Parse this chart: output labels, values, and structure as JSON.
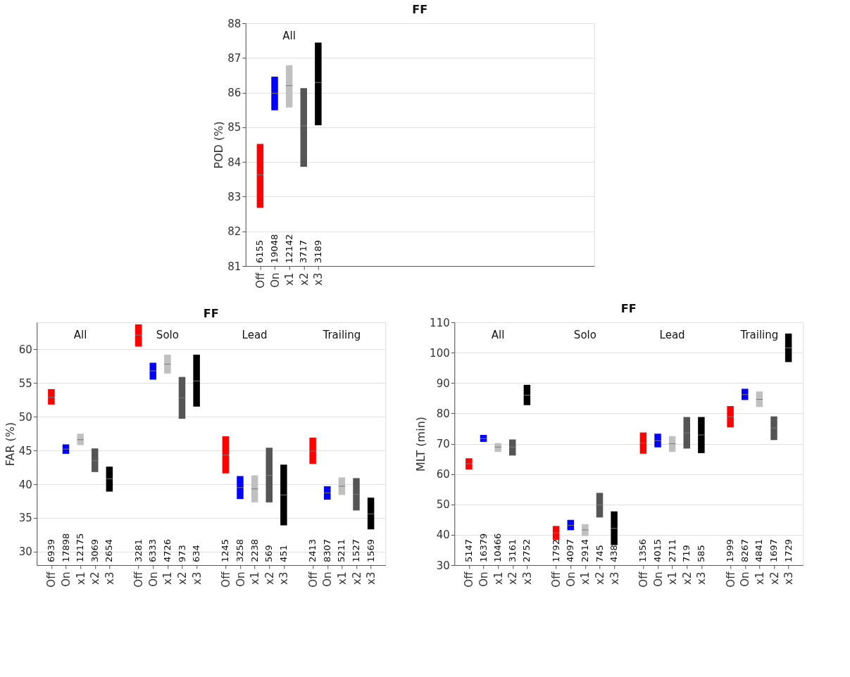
{
  "chart_data": [
    {
      "type": "box",
      "title": "FF",
      "ylabel": "POD (%)",
      "ylim": [
        81,
        88
      ],
      "yticks": [
        81,
        82,
        83,
        84,
        85,
        86,
        87,
        88
      ],
      "grid": "y",
      "categories": [
        "Off",
        "On",
        "x1",
        "x2",
        "x3",
        null,
        null,
        null,
        null,
        null,
        null,
        null,
        null,
        null,
        null,
        null,
        null,
        null,
        null,
        null,
        null,
        null,
        null
      ],
      "annotations": [
        "All",
        "6155",
        "19048",
        "12142",
        "3717",
        "3189"
      ],
      "series": [
        {
          "colors": [
            "#ff0000",
            "#0000ff",
            "#c0c0c0",
            "#555555",
            "#000000",
            null,
            null,
            null,
            null,
            null,
            null,
            null,
            null,
            null,
            null,
            null,
            null,
            null,
            null,
            null,
            null,
            null,
            null
          ],
          "boxes": [
            {
              "low": 82.68,
              "q1": 82.68,
              "median": 83.63,
              "q3": 84.52,
              "high": 84.52
            },
            {
              "low": 85.49,
              "q1": 85.49,
              "median": 85.98,
              "q3": 86.46,
              "high": 86.46
            },
            {
              "low": 85.57,
              "q1": 85.57,
              "median": 86.2,
              "q3": 86.79,
              "high": 86.79
            },
            {
              "low": 83.86,
              "q1": 83.86,
              "median": 85.04,
              "q3": 86.13,
              "high": 86.13
            },
            {
              "low": 85.06,
              "q1": 85.06,
              "median": 86.29,
              "q3": 87.44,
              "high": 87.44
            },
            null,
            null,
            null,
            null,
            null,
            null,
            null,
            null,
            null,
            null,
            null,
            null,
            null,
            null,
            null,
            null,
            null,
            null
          ]
        }
      ]
    },
    {
      "type": "box",
      "title": "FF",
      "ylabel": "FAR (%)",
      "ylim": [
        28,
        64
      ],
      "yticks": [
        30,
        35,
        40,
        45,
        50,
        55,
        60
      ],
      "grid": "y",
      "categories": [
        "Off",
        "On",
        "x1",
        "x2",
        "x3",
        null,
        "Off",
        "On",
        "x1",
        "x2",
        "x3",
        null,
        "Off",
        "On",
        "x1",
        "x2",
        "x3",
        null,
        "Off",
        "On",
        "x1",
        "x2",
        "x3"
      ],
      "annotations": [
        "All",
        "Solo",
        "Lead",
        "Trailing",
        "6939",
        "17898",
        "12175",
        "3069",
        "2654",
        "3281",
        "6333",
        "4726",
        "973",
        "634",
        "1245",
        "3258",
        "2238",
        "569",
        "451",
        "2413",
        "8307",
        "5211",
        "1527",
        "1569"
      ],
      "series": [
        {
          "colors": [
            "#ff0000",
            "#0000ff",
            "#c0c0c0",
            "#555555",
            "#000000",
            null,
            "#ff0000",
            "#0000ff",
            "#c0c0c0",
            "#555555",
            "#000000",
            null,
            "#ff0000",
            "#0000ff",
            "#c0c0c0",
            "#555555",
            "#000000",
            null,
            "#ff0000",
            "#0000ff",
            "#c0c0c0",
            "#555555",
            "#000000"
          ],
          "boxes": [
            {
              "low": 51.8,
              "q1": 51.8,
              "median": 52.9,
              "q3": 54.1,
              "high": 54.1
            },
            {
              "low": 44.5,
              "q1": 44.5,
              "median": 45.2,
              "q3": 45.9,
              "high": 45.9
            },
            {
              "low": 45.8,
              "q1": 45.8,
              "median": 46.6,
              "q3": 47.5,
              "high": 47.5
            },
            {
              "low": 41.8,
              "q1": 41.8,
              "median": 43.5,
              "q3": 45.3,
              "high": 45.3
            },
            {
              "low": 38.9,
              "q1": 38.9,
              "median": 40.8,
              "q3": 42.6,
              "high": 42.6
            },
            null,
            {
              "low": 60.4,
              "q1": 60.4,
              "median": 62.1,
              "q3": 63.7,
              "high": 63.7
            },
            {
              "low": 55.5,
              "q1": 55.5,
              "median": 56.8,
              "q3": 58.0,
              "high": 58.0
            },
            {
              "low": 56.4,
              "q1": 56.4,
              "median": 57.8,
              "q3": 59.2,
              "high": 59.2
            },
            {
              "low": 49.7,
              "q1": 49.7,
              "median": 52.8,
              "q3": 55.9,
              "high": 55.9
            },
            {
              "low": 51.5,
              "q1": 51.5,
              "median": 55.3,
              "q3": 59.2,
              "high": 59.2
            },
            null,
            {
              "low": 41.6,
              "q1": 41.6,
              "median": 44.3,
              "q3": 47.1,
              "high": 47.1
            },
            {
              "low": 37.8,
              "q1": 37.8,
              "median": 39.5,
              "q3": 41.2,
              "high": 41.2
            },
            {
              "low": 37.3,
              "q1": 37.3,
              "median": 39.3,
              "q3": 41.3,
              "high": 41.3
            },
            {
              "low": 37.3,
              "q1": 37.3,
              "median": 41.3,
              "q3": 45.4,
              "high": 45.4
            },
            {
              "low": 33.9,
              "q1": 33.9,
              "median": 38.4,
              "q3": 42.9,
              "high": 42.9
            },
            null,
            {
              "low": 43.0,
              "q1": 43.0,
              "median": 44.9,
              "q3": 46.9,
              "high": 46.9
            },
            {
              "low": 37.7,
              "q1": 37.7,
              "median": 38.7,
              "q3": 39.7,
              "high": 39.7
            },
            {
              "low": 38.4,
              "q1": 38.4,
              "median": 39.7,
              "q3": 41.0,
              "high": 41.0
            },
            {
              "low": 36.1,
              "q1": 36.1,
              "median": 38.5,
              "q3": 40.9,
              "high": 40.9
            },
            {
              "low": 33.3,
              "q1": 33.3,
              "median": 35.6,
              "q3": 38.0,
              "high": 38.0
            }
          ]
        }
      ]
    },
    {
      "type": "box",
      "title": "FF",
      "ylabel": "MLT (min)",
      "ylim": [
        30,
        110
      ],
      "yticks": [
        30,
        40,
        50,
        60,
        70,
        80,
        90,
        100,
        110
      ],
      "grid": "y",
      "categories": [
        "Off",
        "On",
        "x1",
        "x2",
        "x3",
        null,
        "Off",
        "On",
        "x1",
        "x2",
        "x3",
        null,
        "Off",
        "On",
        "x1",
        "x2",
        "x3",
        null,
        "Off",
        "On",
        "x1",
        "x2",
        "x3"
      ],
      "annotations": [
        "All",
        "Solo",
        "Lead",
        "Trailing",
        "5147",
        "16379",
        "10466",
        "3161",
        "2752",
        "1792",
        "4097",
        "2914",
        "745",
        "438",
        "1356",
        "4015",
        "2711",
        "719",
        "585",
        "1999",
        "8267",
        "4841",
        "1697",
        "1729"
      ],
      "series": [
        {
          "colors": [
            "#ff0000",
            "#0000ff",
            "#c0c0c0",
            "#555555",
            "#000000",
            null,
            "#ff0000",
            "#0000ff",
            "#c0c0c0",
            "#555555",
            "#000000",
            null,
            "#ff0000",
            "#0000ff",
            "#c0c0c0",
            "#555555",
            "#000000",
            null,
            "#ff0000",
            "#0000ff",
            "#c0c0c0",
            "#555555",
            "#000000"
          ],
          "boxes": [
            {
              "low": 61.5,
              "q1": 61.5,
              "median": 63.4,
              "q3": 65.2,
              "high": 65.2
            },
            {
              "low": 70.6,
              "q1": 70.6,
              "median": 71.7,
              "q3": 72.9,
              "high": 72.9
            },
            {
              "low": 67.3,
              "q1": 67.3,
              "median": 68.9,
              "q3": 70.2,
              "high": 70.2
            },
            {
              "low": 66.1,
              "q1": 66.1,
              "median": 68.9,
              "q3": 71.4,
              "high": 71.4
            },
            {
              "low": 82.7,
              "q1": 82.7,
              "median": 86.0,
              "q3": 89.4,
              "high": 89.4
            },
            null,
            {
              "low": 38.3,
              "q1": 38.3,
              "median": 40.6,
              "q3": 42.9,
              "high": 42.9
            },
            {
              "low": 41.5,
              "q1": 41.5,
              "median": 43.1,
              "q3": 44.9,
              "high": 44.9
            },
            {
              "low": 39.6,
              "q1": 39.6,
              "median": 41.6,
              "q3": 43.5,
              "high": 43.5
            },
            {
              "low": 45.7,
              "q1": 45.7,
              "median": 49.8,
              "q3": 53.8,
              "high": 53.8
            },
            {
              "low": 36.6,
              "q1": 36.6,
              "median": 42.1,
              "q3": 47.7,
              "high": 47.7
            },
            null,
            {
              "low": 66.7,
              "q1": 66.7,
              "median": 70.2,
              "q3": 73.7,
              "high": 73.7
            },
            {
              "low": 68.8,
              "q1": 68.8,
              "median": 71.0,
              "q3": 73.3,
              "high": 73.3
            },
            {
              "low": 67.3,
              "q1": 67.3,
              "median": 70.0,
              "q3": 72.5,
              "high": 72.5
            },
            {
              "low": 68.4,
              "q1": 68.4,
              "median": 73.6,
              "q3": 78.8,
              "high": 78.8
            },
            {
              "low": 66.9,
              "q1": 66.9,
              "median": 72.9,
              "q3": 78.8,
              "high": 78.8
            },
            null,
            {
              "low": 75.4,
              "q1": 75.4,
              "median": 78.9,
              "q3": 82.4,
              "high": 82.4
            },
            {
              "low": 84.4,
              "q1": 84.4,
              "median": 86.2,
              "q3": 88.1,
              "high": 88.1
            },
            {
              "low": 82.1,
              "q1": 82.1,
              "median": 84.6,
              "q3": 87.2,
              "high": 87.2
            },
            {
              "low": 71.2,
              "q1": 71.2,
              "median": 75.2,
              "q3": 79.0,
              "high": 79.0
            },
            {
              "low": 96.9,
              "q1": 96.9,
              "median": 101.6,
              "q3": 106.3,
              "high": 106.3
            }
          ]
        }
      ]
    }
  ]
}
